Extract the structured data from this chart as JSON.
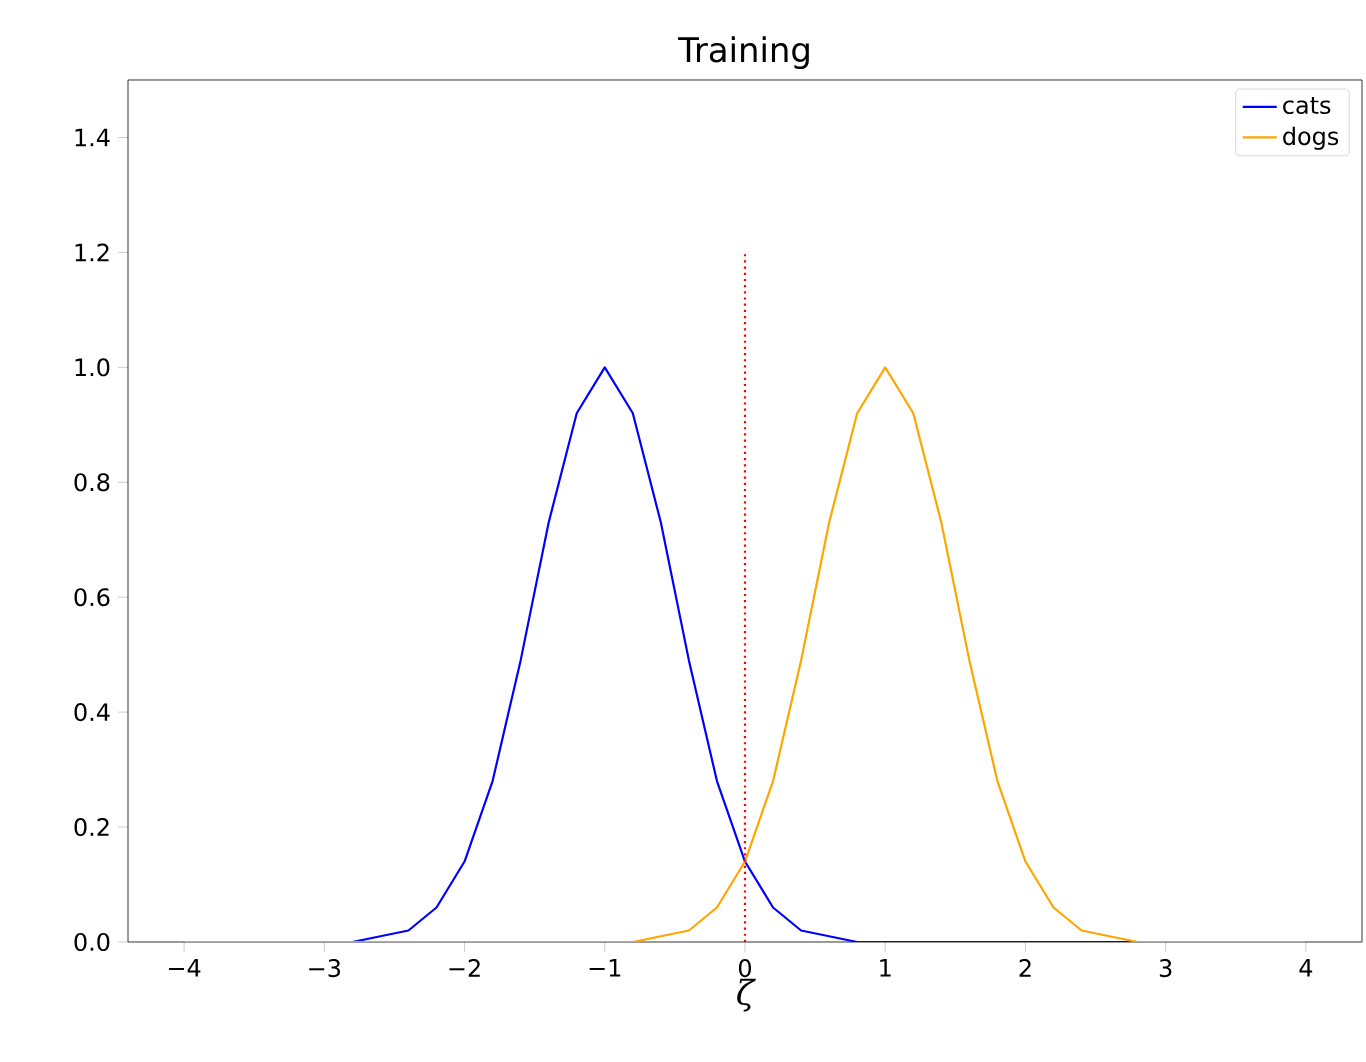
{
  "chart_data": {
    "type": "line",
    "title": "Training",
    "xlabel": "ζ",
    "x": [
      -4,
      -3.8,
      -3.6,
      -3.4,
      -3.2,
      -3,
      -2.8,
      -2.6,
      -2.4,
      -2.2,
      -2,
      -1.8,
      -1.6,
      -1.4,
      -1.2,
      -1,
      -0.8,
      -0.6,
      -0.4,
      -0.2,
      0,
      0.2,
      0.4,
      0.6,
      0.8,
      1,
      1.2,
      1.4,
      1.6,
      1.8,
      2,
      2.2,
      2.4,
      2.6,
      2.8,
      3,
      3.2,
      3.4,
      3.6,
      3.8,
      4
    ],
    "series": [
      {
        "name": "cats",
        "color": "#0000ff",
        "values": [
          null,
          null,
          null,
          null,
          null,
          0,
          0,
          0.01,
          0.02,
          0.06,
          0.14,
          0.28,
          0.49,
          0.73,
          0.92,
          1,
          0.92,
          0.73,
          0.49,
          0.28,
          0.14,
          0.06,
          0.02,
          0.01,
          0,
          0,
          0,
          0,
          0,
          0,
          0,
          0,
          0,
          0,
          0,
          0,
          0,
          null,
          null,
          null,
          null
        ]
      },
      {
        "name": "dogs",
        "color": "#ffa500",
        "values": [
          0,
          0,
          0,
          0,
          0,
          0,
          0,
          0,
          0,
          0,
          0,
          0,
          0,
          0,
          0,
          0,
          0,
          0.01,
          0.02,
          0.06,
          0.14,
          0.28,
          0.49,
          0.73,
          0.92,
          1,
          0.92,
          0.73,
          0.49,
          0.28,
          0.14,
          0.06,
          0.02,
          0.01,
          0,
          0,
          0,
          0,
          0,
          0,
          0
        ]
      },
      {
        "type": "line",
        "color": "#ff0000",
        "line_style": "dotted",
        "x": [
          0,
          0
        ],
        "values": [
          0,
          1.2
        ]
      }
    ],
    "xlim": [
      -4.4,
      4.4
    ],
    "ylim": [
      0,
      1.5
    ],
    "xticks": [
      {
        "value": -4,
        "label": "−4"
      },
      {
        "value": -3,
        "label": "−3"
      },
      {
        "value": -2,
        "label": "−2"
      },
      {
        "value": -1,
        "label": "−1"
      },
      0,
      1,
      2,
      3,
      4
    ],
    "yticks": [
      {
        "value": 0,
        "label": "0.0"
      },
      0.2,
      0.4,
      0.6,
      0.8,
      {
        "value": 1,
        "label": "1.0"
      },
      1.2,
      1.4
    ],
    "legend": "top right",
    "grid": false,
    "marker": "none",
    "line_style": "solid"
  }
}
